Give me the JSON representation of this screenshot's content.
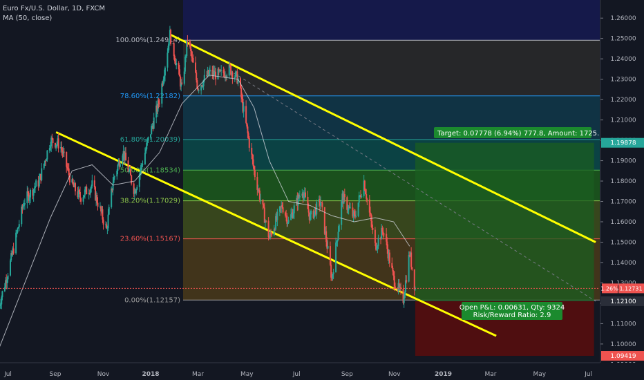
{
  "chart_data": {
    "type": "candlestick",
    "title": "Euro Fx/U.S. Dollar, 1D, FXCM",
    "indicator": "MA (50, close)",
    "x_tick_labels": [
      "Jul",
      "Sep",
      "Nov",
      "2018",
      "Mar",
      "May",
      "Jul",
      "Sep",
      "Nov",
      "2019",
      "Mar",
      "May",
      "Jul"
    ],
    "y_tick_labels": [
      "1.26000",
      "1.25000",
      "1.24000",
      "1.23000",
      "1.22000",
      "1.21000",
      "1.20000",
      "1.19000",
      "1.18000",
      "1.17000",
      "1.16000",
      "1.15000",
      "1.14000",
      "1.13000",
      "1.12000",
      "1.11000",
      "1.10000",
      "1.09000"
    ],
    "ylim": [
      1.0925,
      1.2655
    ],
    "series_price_path": [
      [
        "2017-06-26",
        1.119
      ],
      [
        "2017-07-10",
        1.14
      ],
      [
        "2017-07-27",
        1.17
      ],
      [
        "2017-08-15",
        1.18
      ],
      [
        "2017-08-29",
        1.2
      ],
      [
        "2017-09-10",
        1.198
      ],
      [
        "2017-09-25",
        1.178
      ],
      [
        "2017-10-05",
        1.172
      ],
      [
        "2017-10-20",
        1.178
      ],
      [
        "2017-11-07",
        1.156
      ],
      [
        "2017-11-15",
        1.18
      ],
      [
        "2017-11-27",
        1.195
      ],
      [
        "2017-12-12",
        1.175
      ],
      [
        "2017-12-29",
        1.2
      ],
      [
        "2018-01-12",
        1.22
      ],
      [
        "2018-01-25",
        1.252
      ],
      [
        "2018-02-09",
        1.225
      ],
      [
        "2018-02-16",
        1.25
      ],
      [
        "2018-03-01",
        1.226
      ],
      [
        "2018-03-15",
        1.233
      ],
      [
        "2018-03-28",
        1.232
      ],
      [
        "2018-04-10",
        1.235
      ],
      [
        "2018-04-20",
        1.23
      ],
      [
        "2018-05-10",
        1.185
      ],
      [
        "2018-05-29",
        1.152
      ],
      [
        "2018-06-14",
        1.168
      ],
      [
        "2018-06-22",
        1.16
      ],
      [
        "2018-07-09",
        1.176
      ],
      [
        "2018-07-19",
        1.162
      ],
      [
        "2018-08-01",
        1.17
      ],
      [
        "2018-08-15",
        1.132
      ],
      [
        "2018-08-28",
        1.172
      ],
      [
        "2018-09-12",
        1.162
      ],
      [
        "2018-09-24",
        1.18
      ],
      [
        "2018-10-08",
        1.148
      ],
      [
        "2018-10-18",
        1.156
      ],
      [
        "2018-10-31",
        1.132
      ],
      [
        "2018-11-12",
        1.122
      ],
      [
        "2018-11-20",
        1.145
      ],
      [
        "2018-11-27",
        1.127
      ]
    ],
    "ma_50_path": [
      [
        "2017-06-26",
        1.098
      ],
      [
        "2017-07-27",
        1.129
      ],
      [
        "2017-08-29",
        1.162
      ],
      [
        "2017-09-25",
        1.185
      ],
      [
        "2017-10-20",
        1.188
      ],
      [
        "2017-11-15",
        1.178
      ],
      [
        "2017-12-12",
        1.18
      ],
      [
        "2018-01-12",
        1.194
      ],
      [
        "2018-02-09",
        1.218
      ],
      [
        "2018-03-15",
        1.232
      ],
      [
        "2018-04-20",
        1.23
      ],
      [
        "2018-05-10",
        1.216
      ],
      [
        "2018-05-29",
        1.19
      ],
      [
        "2018-06-22",
        1.17
      ],
      [
        "2018-07-19",
        1.168
      ],
      [
        "2018-08-15",
        1.163
      ],
      [
        "2018-09-12",
        1.16
      ],
      [
        "2018-10-08",
        1.162
      ],
      [
        "2018-10-31",
        1.16
      ],
      [
        "2018-11-20",
        1.148
      ]
    ],
    "fib_levels": [
      {
        "label": "100.00%(1.24914)",
        "price": 1.24914
      },
      {
        "label": "78.60%(1.22182)",
        "price": 1.22182
      },
      {
        "label": "61.80%(1.20039)",
        "price": 1.20039
      },
      {
        "label": "50.00%(1.18534)",
        "price": 1.18534
      },
      {
        "label": "38.20%(1.17029)",
        "price": 1.17029
      },
      {
        "label": "23.60%(1.15167)",
        "price": 1.15167
      },
      {
        "label": "0.00%(1.12157)",
        "price": 1.12157
      }
    ],
    "channel_lines": [
      {
        "from": [
          "2018-01-25",
          1.252
        ],
        "to": [
          "2019-07-10",
          1.15
        ],
        "color": "#ffff00"
      },
      {
        "from": [
          "2017-09-05",
          1.204
        ],
        "to": [
          "2019-03-08",
          1.104
        ],
        "color": "#ffff00"
      }
    ],
    "position": {
      "entry": 1.121,
      "target": 1.19878,
      "stop": 1.09419,
      "from": "2018-11-27",
      "to": "2019-07-08",
      "target_text": "Target: 0.07778 (6.94%) 777.8, Amount: 1725.22",
      "pnl_text": "Open P&L: 0.00631, Qty: 9324",
      "rr_text": "Risk/Reward Ratio: 2.9"
    },
    "current_price": {
      "value": 1.12731,
      "label": "1.12731",
      "change_label": "1.26%"
    },
    "price_tags": [
      {
        "value": 1.19878,
        "label": "1.19878",
        "color": "#26a69a"
      },
      {
        "value": 1.121,
        "label": "1.12100",
        "color": "#d1d4dc"
      },
      {
        "value": 1.09419,
        "label": "1.09419",
        "color": "#ef5350"
      }
    ]
  }
}
